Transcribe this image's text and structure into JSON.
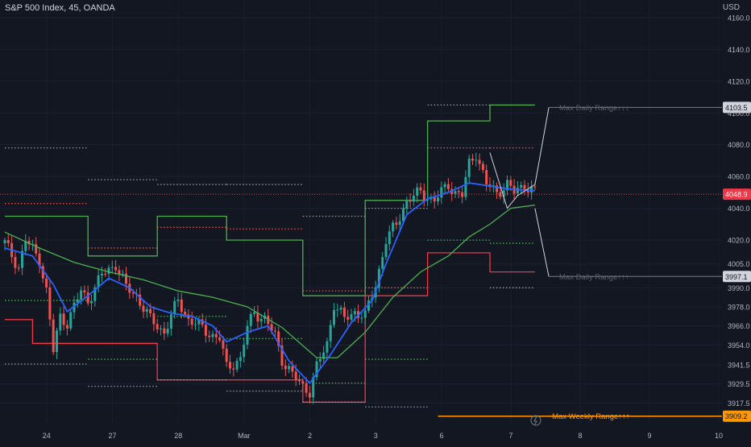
{
  "header": {
    "symbol": "S&P 500 Index, 45, OANDA",
    "currency": "USD"
  },
  "colors": {
    "background": "#131722",
    "axis_text": "#b2b5be",
    "candle_up": "#26a69a",
    "candle_down": "#ef5350",
    "fast_ma": "#2962ff",
    "slow_ma": "#4caf50",
    "range_upper": "#4caf50",
    "range_lower": "#f23645",
    "weekly": "#ff9800",
    "projection": "#d1d4dc",
    "projection_label": "#5d606b"
  },
  "chart_data": {
    "type": "candlestick",
    "x_ticks": [
      "24",
      "27",
      "28",
      "Mar",
      "2",
      "3",
      "6",
      "7",
      "8",
      "9",
      "10"
    ],
    "y_ticks": [
      "4160.0",
      "4140.0",
      "4120.0",
      "4100.0",
      "4080.0",
      "4060.0",
      "4040.0",
      "4020.0",
      "4005.0",
      "3990.0",
      "3978.0",
      "3966.0",
      "3954.0",
      "3941.5",
      "3929.5",
      "3917.5"
    ],
    "y_range": [
      3905,
      4165
    ],
    "current_price": "4048.9",
    "close_path": [
      [
        0,
        4018
      ],
      [
        4,
        4003
      ],
      [
        6,
        4020
      ],
      [
        10,
        4008
      ],
      [
        12,
        3988
      ],
      [
        14,
        3950
      ],
      [
        16,
        3972
      ],
      [
        18,
        3968
      ],
      [
        22,
        3988
      ],
      [
        24,
        3982
      ],
      [
        28,
        3998
      ],
      [
        32,
        4005
      ],
      [
        35,
        3990
      ],
      [
        38,
        3985
      ],
      [
        42,
        3970
      ],
      [
        46,
        3962
      ],
      [
        50,
        3982
      ],
      [
        53,
        3970
      ],
      [
        56,
        3966
      ],
      [
        60,
        3960
      ],
      [
        62,
        3958
      ],
      [
        64,
        3940
      ],
      [
        68,
        3945
      ],
      [
        70,
        3965
      ],
      [
        72,
        3975
      ],
      [
        75,
        3970
      ],
      [
        78,
        3960
      ],
      [
        80,
        3945
      ],
      [
        83,
        3935
      ],
      [
        86,
        3928
      ],
      [
        88,
        3925
      ],
      [
        90,
        3940
      ],
      [
        93,
        3955
      ],
      [
        95,
        3980
      ],
      [
        98,
        3970
      ],
      [
        101,
        3975
      ],
      [
        104,
        3972
      ],
      [
        107,
        3992
      ],
      [
        110,
        4020
      ],
      [
        113,
        4030
      ],
      [
        116,
        4045
      ],
      [
        120,
        4050
      ],
      [
        124,
        4045
      ],
      [
        128,
        4055
      ],
      [
        130,
        4050
      ],
      [
        132,
        4048
      ],
      [
        134,
        4068
      ],
      [
        136,
        4075
      ],
      [
        139,
        4055
      ],
      [
        142,
        4050
      ],
      [
        145,
        4055
      ],
      [
        147,
        4050
      ],
      [
        150,
        4055
      ],
      [
        153,
        4050
      ]
    ],
    "fast_ma_path": [
      [
        0,
        4015
      ],
      [
        8,
        4010
      ],
      [
        14,
        3992
      ],
      [
        18,
        3975
      ],
      [
        24,
        3985
      ],
      [
        30,
        3996
      ],
      [
        36,
        3990
      ],
      [
        42,
        3978
      ],
      [
        48,
        3974
      ],
      [
        54,
        3972
      ],
      [
        60,
        3966
      ],
      [
        64,
        3956
      ],
      [
        70,
        3962
      ],
      [
        76,
        3966
      ],
      [
        82,
        3944
      ],
      [
        88,
        3930
      ],
      [
        94,
        3948
      ],
      [
        100,
        3968
      ],
      [
        106,
        3982
      ],
      [
        110,
        4005
      ],
      [
        116,
        4036
      ],
      [
        122,
        4046
      ],
      [
        128,
        4050
      ],
      [
        134,
        4056
      ],
      [
        140,
        4054
      ],
      [
        146,
        4052
      ],
      [
        153,
        4051
      ]
    ],
    "slow_ma_path": [
      [
        0,
        4025
      ],
      [
        10,
        4015
      ],
      [
        20,
        4006
      ],
      [
        30,
        4000
      ],
      [
        40,
        3995
      ],
      [
        50,
        3988
      ],
      [
        60,
        3984
      ],
      [
        70,
        3978
      ],
      [
        80,
        3965
      ],
      [
        90,
        3946
      ],
      [
        96,
        3946
      ],
      [
        104,
        3962
      ],
      [
        112,
        3984
      ],
      [
        120,
        4000
      ],
      [
        128,
        4010
      ],
      [
        134,
        4022
      ],
      [
        140,
        4030
      ],
      [
        146,
        4040
      ],
      [
        153,
        4042
      ]
    ],
    "upper_range_steps": [
      [
        0,
        4035
      ],
      [
        24,
        4035
      ],
      [
        24,
        4010
      ],
      [
        44,
        4010
      ],
      [
        44,
        4035
      ],
      [
        64,
        4035
      ],
      [
        64,
        4020
      ],
      [
        86,
        4020
      ],
      [
        86,
        3985
      ],
      [
        104,
        3985
      ],
      [
        104,
        4045
      ],
      [
        122,
        4045
      ],
      [
        122,
        4095
      ],
      [
        140,
        4095
      ],
      [
        140,
        4105
      ],
      [
        153,
        4105
      ]
    ],
    "lower_range_steps": [
      [
        0,
        3970
      ],
      [
        8,
        3970
      ],
      [
        8,
        3955
      ],
      [
        44,
        3955
      ],
      [
        44,
        3932
      ],
      [
        86,
        3932
      ],
      [
        86,
        3918
      ],
      [
        104,
        3918
      ],
      [
        104,
        3985
      ],
      [
        122,
        3985
      ],
      [
        122,
        4012
      ],
      [
        140,
        4012
      ],
      [
        140,
        4000
      ],
      [
        153,
        4000
      ]
    ],
    "projection_path": [
      [
        140,
        4075
      ],
      [
        145,
        4040
      ],
      [
        148,
        4048
      ],
      [
        153,
        4055
      ]
    ],
    "projection_up": [
      [
        153,
        4055
      ],
      [
        157,
        4103.5
      ]
    ],
    "projection_down": [
      [
        153,
        4040
      ],
      [
        157,
        3997.1
      ]
    ],
    "levels": [
      {
        "label": "Max Daily Range↓↓↓",
        "price": 4103.5,
        "price_label": "4103.5"
      },
      {
        "label": "Max Daily Range↑↑↑",
        "price": 3997.1,
        "price_label": "3997.1"
      },
      {
        "label": "Max Weekly Range↑↑↑",
        "price": 3909.2,
        "price_label": "3909.2"
      }
    ]
  }
}
